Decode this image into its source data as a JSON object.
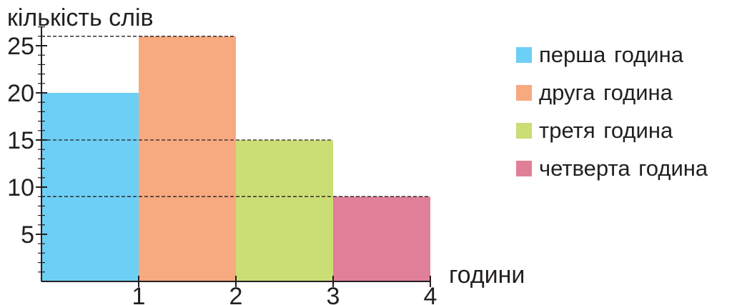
{
  "chart_data": {
    "type": "bar",
    "ylabel": "кількість слів",
    "xlabel": "години",
    "x_ticks": [
      "1",
      "2",
      "3",
      "4"
    ],
    "y_ticks": [
      5,
      10,
      15,
      20,
      25
    ],
    "ylim": [
      0,
      27
    ],
    "xlim": [
      0,
      4
    ],
    "grid": false,
    "legend_position": "right",
    "series": [
      {
        "name": "перша година",
        "x_start": 0,
        "x_end": 1,
        "value": 20,
        "color": "#6dcff6"
      },
      {
        "name": "друга година",
        "x_start": 1,
        "x_end": 2,
        "value": 26,
        "color": "#f7a980"
      },
      {
        "name": "третя година",
        "x_start": 2,
        "x_end": 3,
        "value": 15,
        "color": "#cbdd75"
      },
      {
        "name": "четверта година",
        "x_start": 3,
        "x_end": 4,
        "value": 9,
        "color": "#e08098"
      }
    ],
    "reference_lines": [
      26,
      15,
      9
    ]
  }
}
